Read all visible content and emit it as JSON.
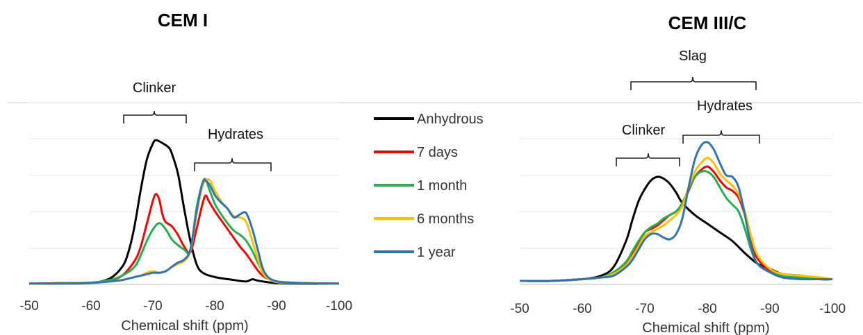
{
  "figure": {
    "legend": {
      "entries": [
        {
          "label": "Anhydrous",
          "color": "#000000"
        },
        {
          "label": "7 days",
          "color": "#ff0000"
        },
        {
          "label": "1 month",
          "color": "#22b24c"
        },
        {
          "label": "6 months",
          "color": "#ffc000"
        },
        {
          "label": "1 year",
          "color": "#2e75b6"
        }
      ]
    }
  },
  "chart_data": [
    {
      "type": "line",
      "title": "CEM I",
      "xlabel": "Chemical shift (ppm)",
      "ylabel": "",
      "xlim": [
        -50,
        -100
      ],
      "ylim": [
        0,
        1.0
      ],
      "x_ticks": [
        "-50",
        "-60",
        "-70",
        "-80",
        "-90",
        "-100"
      ],
      "grid": true,
      "legend_placement": "right",
      "annotations": [
        {
          "text": "Clinker",
          "from": -65.0,
          "to": -75.5
        },
        {
          "text": "Hydrates",
          "from": -76.5,
          "to": -89.5
        }
      ],
      "series": [
        {
          "name": "Anhydrous",
          "x": [
            -50,
            -55,
            -60,
            -63,
            -65,
            -66,
            -67,
            -68,
            -69,
            -70,
            -70.5,
            -71.5,
            -72.5,
            -73,
            -74,
            -75,
            -76,
            -77,
            -78,
            -80,
            -83,
            -85,
            -86,
            -87,
            -90,
            -95,
            -100
          ],
          "y": [
            0.005,
            0.006,
            0.01,
            0.04,
            0.12,
            0.22,
            0.4,
            0.65,
            0.86,
            0.97,
            0.99,
            0.97,
            0.94,
            0.9,
            0.76,
            0.52,
            0.3,
            0.14,
            0.08,
            0.05,
            0.03,
            0.02,
            0.035,
            0.025,
            0.008,
            0.005,
            0.005
          ]
        },
        {
          "name": "7 days",
          "x": [
            -50,
            -55,
            -60,
            -63,
            -65,
            -67,
            -68,
            -69,
            -70,
            -70.5,
            -71,
            -71.5,
            -72,
            -73,
            -74,
            -75,
            -76,
            -77,
            -78,
            -78.5,
            -79,
            -80,
            -81,
            -82,
            -83,
            -84,
            -85,
            -86,
            -87,
            -88,
            -90,
            -95,
            -100
          ],
          "y": [
            0.005,
            0.008,
            0.012,
            0.03,
            0.06,
            0.16,
            0.26,
            0.42,
            0.58,
            0.62,
            0.58,
            0.48,
            0.43,
            0.4,
            0.34,
            0.26,
            0.22,
            0.38,
            0.56,
            0.61,
            0.57,
            0.5,
            0.44,
            0.38,
            0.32,
            0.26,
            0.21,
            0.15,
            0.09,
            0.05,
            0.02,
            0.008,
            0.005
          ]
        },
        {
          "name": "1 month",
          "x": [
            -50,
            -55,
            -60,
            -63,
            -65,
            -67,
            -68,
            -69,
            -70,
            -71,
            -72,
            -73,
            -74,
            -75,
            -76,
            -77,
            -78,
            -78.5,
            -79,
            -80,
            -81,
            -82,
            -83,
            -84,
            -85,
            -86,
            -87,
            -88,
            -90,
            -95,
            -100
          ],
          "y": [
            0.005,
            0.008,
            0.012,
            0.03,
            0.06,
            0.12,
            0.2,
            0.3,
            0.38,
            0.42,
            0.38,
            0.31,
            0.27,
            0.24,
            0.23,
            0.52,
            0.7,
            0.72,
            0.66,
            0.55,
            0.48,
            0.42,
            0.37,
            0.34,
            0.3,
            0.23,
            0.14,
            0.07,
            0.02,
            0.008,
            0.005
          ]
        },
        {
          "name": "6 months",
          "x": [
            -50,
            -55,
            -60,
            -63,
            -65,
            -67,
            -68,
            -69,
            -70,
            -71,
            -72,
            -73,
            -74,
            -75,
            -76,
            -77,
            -78,
            -79,
            -80,
            -81,
            -82,
            -83,
            -84,
            -85,
            -86,
            -87,
            -88,
            -90,
            -95,
            -100
          ],
          "y": [
            0.005,
            0.008,
            0.01,
            0.02,
            0.03,
            0.05,
            0.06,
            0.08,
            0.09,
            0.08,
            0.09,
            0.12,
            0.14,
            0.16,
            0.23,
            0.48,
            0.68,
            0.72,
            0.64,
            0.57,
            0.52,
            0.47,
            0.46,
            0.43,
            0.3,
            0.16,
            0.06,
            0.015,
            0.008,
            0.005
          ]
        },
        {
          "name": "1 year",
          "x": [
            -50,
            -55,
            -60,
            -63,
            -65,
            -67,
            -68,
            -69,
            -70,
            -71,
            -72,
            -73,
            -74,
            -75,
            -76,
            -77,
            -78,
            -79,
            -80,
            -81,
            -82,
            -83,
            -84,
            -85,
            -86,
            -87,
            -88,
            -90,
            -95,
            -100
          ],
          "y": [
            0.005,
            0.008,
            0.01,
            0.02,
            0.03,
            0.05,
            0.06,
            0.07,
            0.08,
            0.08,
            0.09,
            0.12,
            0.15,
            0.17,
            0.24,
            0.5,
            0.7,
            0.69,
            0.61,
            0.56,
            0.52,
            0.46,
            0.48,
            0.49,
            0.38,
            0.22,
            0.08,
            0.02,
            0.008,
            0.005
          ]
        }
      ]
    },
    {
      "type": "line",
      "title": "CEM III/C",
      "xlabel": "Chemical shift (ppm)",
      "ylabel": "",
      "xlim": [
        -50,
        -100
      ],
      "ylim": [
        0,
        1.0
      ],
      "x_ticks": [
        "-50",
        "-60",
        "-70",
        "-80",
        "-90",
        "-100"
      ],
      "grid": true,
      "annotations": [
        {
          "text": "Slag",
          "from": -67.5,
          "to": -88.0
        },
        {
          "text": "Clinker",
          "from": -65.5,
          "to": -75.5
        },
        {
          "text": "Hydrates",
          "from": -76.0,
          "to": -88.5
        }
      ],
      "series": [
        {
          "name": "Anhydrous",
          "x": [
            -50,
            -55,
            -60,
            -63,
            -65,
            -67,
            -68,
            -69,
            -70,
            -71,
            -72,
            -73,
            -74,
            -75,
            -76,
            -78,
            -80,
            -82,
            -84,
            -86,
            -88,
            -90,
            -92,
            -95,
            -98,
            -100
          ],
          "y": [
            0.02,
            0.02,
            0.03,
            0.05,
            0.1,
            0.25,
            0.37,
            0.48,
            0.55,
            0.6,
            0.62,
            0.61,
            0.58,
            0.53,
            0.47,
            0.4,
            0.35,
            0.3,
            0.25,
            0.18,
            0.12,
            0.09,
            0.06,
            0.05,
            0.03,
            0.03
          ]
        },
        {
          "name": "7 days",
          "x": [
            -50,
            -55,
            -60,
            -63,
            -65,
            -67,
            -68,
            -69,
            -70,
            -71,
            -72,
            -73,
            -74,
            -75,
            -76,
            -77,
            -78,
            -79,
            -80,
            -81,
            -82,
            -83,
            -84,
            -85,
            -86,
            -87,
            -88,
            -90,
            -92,
            -95,
            -98,
            -100
          ],
          "y": [
            0.02,
            0.02,
            0.03,
            0.04,
            0.06,
            0.12,
            0.18,
            0.24,
            0.3,
            0.32,
            0.34,
            0.37,
            0.4,
            0.42,
            0.46,
            0.54,
            0.62,
            0.66,
            0.68,
            0.65,
            0.6,
            0.56,
            0.54,
            0.5,
            0.4,
            0.25,
            0.15,
            0.08,
            0.05,
            0.04,
            0.03,
            0.03
          ]
        },
        {
          "name": "1 month",
          "x": [
            -50,
            -55,
            -60,
            -63,
            -65,
            -67,
            -68,
            -69,
            -70,
            -71,
            -72,
            -73,
            -74,
            -75,
            -76,
            -77,
            -78,
            -79,
            -80,
            -81,
            -82,
            -83,
            -84,
            -85,
            -86,
            -87,
            -88,
            -90,
            -92,
            -95,
            -98,
            -100
          ],
          "y": [
            0.02,
            0.02,
            0.03,
            0.04,
            0.07,
            0.13,
            0.19,
            0.25,
            0.3,
            0.33,
            0.35,
            0.38,
            0.4,
            0.42,
            0.47,
            0.55,
            0.62,
            0.65,
            0.65,
            0.62,
            0.56,
            0.5,
            0.46,
            0.42,
            0.32,
            0.2,
            0.12,
            0.07,
            0.05,
            0.04,
            0.03,
            0.03
          ]
        },
        {
          "name": "6 months",
          "x": [
            -50,
            -55,
            -60,
            -63,
            -65,
            -67,
            -68,
            -69,
            -70,
            -71,
            -72,
            -73,
            -74,
            -75,
            -76,
            -77,
            -78,
            -79,
            -80,
            -81,
            -82,
            -83,
            -84,
            -85,
            -86,
            -87,
            -88,
            -90,
            -92,
            -95,
            -98,
            -100
          ],
          "y": [
            0.02,
            0.02,
            0.03,
            0.04,
            0.06,
            0.11,
            0.16,
            0.22,
            0.28,
            0.3,
            0.32,
            0.34,
            0.37,
            0.4,
            0.45,
            0.56,
            0.65,
            0.7,
            0.73,
            0.7,
            0.64,
            0.6,
            0.57,
            0.52,
            0.42,
            0.28,
            0.17,
            0.09,
            0.06,
            0.05,
            0.04,
            0.03
          ]
        },
        {
          "name": "1 year",
          "x": [
            -50,
            -55,
            -60,
            -63,
            -65,
            -67,
            -68,
            -69,
            -70,
            -71,
            -72,
            -73,
            -74,
            -75,
            -76,
            -77,
            -78,
            -79,
            -80,
            -81,
            -82,
            -83,
            -84,
            -85,
            -86,
            -87,
            -88,
            -90,
            -92,
            -95,
            -98,
            -100
          ],
          "y": [
            0.02,
            0.02,
            0.03,
            0.04,
            0.05,
            0.1,
            0.14,
            0.2,
            0.26,
            0.29,
            0.29,
            0.27,
            0.26,
            0.29,
            0.38,
            0.56,
            0.72,
            0.8,
            0.82,
            0.78,
            0.7,
            0.63,
            0.62,
            0.56,
            0.4,
            0.22,
            0.12,
            0.07,
            0.04,
            0.03,
            0.03,
            0.03
          ]
        }
      ]
    }
  ]
}
